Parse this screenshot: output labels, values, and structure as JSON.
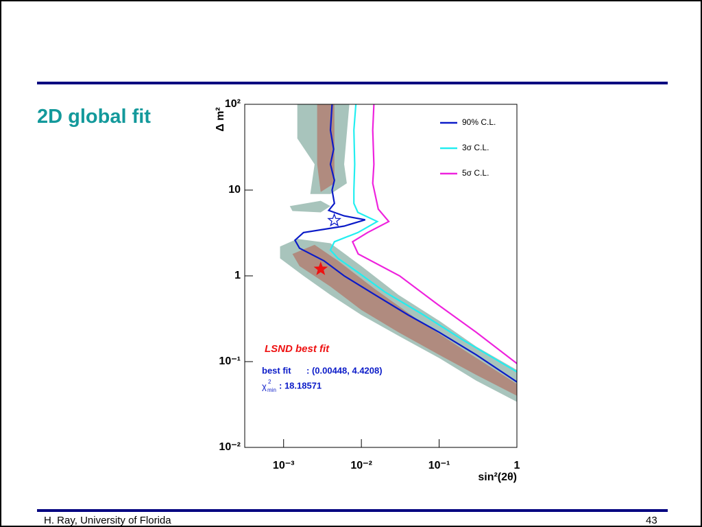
{
  "slide": {
    "title": "2D global fit",
    "footer_left": "H. Ray,  University of Florida",
    "footer_right": "43"
  },
  "chart_data": {
    "type": "line",
    "xscale": "log",
    "yscale": "log",
    "xlabel": "sin²(2θ)",
    "ylabel": "Δ m²",
    "xlim": [
      0.0003162,
      1
    ],
    "ylim": [
      0.01,
      100
    ],
    "xticks": [
      {
        "value": 0.001,
        "label": "10⁻³"
      },
      {
        "value": 0.01,
        "label": "10⁻²"
      },
      {
        "value": 0.1,
        "label": "10⁻¹"
      },
      1
    ],
    "yticks": [
      {
        "value": 0.01,
        "label": "10⁻²"
      },
      {
        "value": 0.1,
        "label": "10⁻¹"
      },
      1,
      10,
      {
        "value": 100,
        "label": "10²"
      }
    ],
    "legend": "upper right",
    "series": [
      {
        "name": "90% C.L.",
        "color": "#0b1bc8",
        "x": [
          0.0042,
          0.004,
          0.0044,
          0.004,
          0.0045,
          0.0042,
          0.0045,
          0.0038,
          0.006,
          0.0112,
          0.006,
          0.0018,
          0.0014,
          0.0016,
          0.0033,
          0.006,
          0.015,
          0.04,
          0.1,
          0.3,
          1
        ],
        "values": [
          100,
          50,
          30,
          20,
          13,
          10,
          7,
          5.8,
          5.0,
          4.5,
          3.8,
          3.2,
          2.6,
          2.1,
          1.5,
          1.0,
          0.6,
          0.35,
          0.22,
          0.12,
          0.058
        ]
      },
      {
        "name": "3σ C.L.",
        "color": "#22eef0",
        "x": [
          0.0085,
          0.008,
          0.0082,
          0.008,
          0.008,
          0.009,
          0.016,
          0.009,
          0.0045,
          0.004,
          0.005,
          0.009,
          0.02,
          0.06,
          0.2,
          1
        ],
        "values": [
          100,
          50,
          20,
          10,
          7,
          5.5,
          4.3,
          3.2,
          2.5,
          2.0,
          1.6,
          1.1,
          0.65,
          0.36,
          0.18,
          0.076
        ]
      },
      {
        "name": "5σ C.L.",
        "color": "#ee22dd",
        "x": [
          0.0145,
          0.014,
          0.0145,
          0.014,
          0.0165,
          0.0225,
          0.012,
          0.0077,
          0.0091,
          0.031,
          0.1,
          0.3,
          1
        ],
        "values": [
          100,
          50,
          20,
          12,
          6,
          4.3,
          3.2,
          2.5,
          1.8,
          1.0,
          0.45,
          0.22,
          0.095
        ]
      }
    ],
    "regions": [
      {
        "color": "#a8c4bc",
        "x": [
          0.0009,
          0.0015,
          0.004,
          0.01,
          0.03,
          0.1,
          0.3,
          1,
          1,
          0.3,
          0.1,
          0.03,
          0.01,
          0.004,
          0.0018,
          0.0009
        ],
        "y": [
          2.2,
          2.7,
          2.4,
          1.3,
          0.6,
          0.3,
          0.15,
          0.08,
          0.034,
          0.06,
          0.11,
          0.2,
          0.35,
          0.6,
          1.0,
          1.6
        ]
      },
      {
        "color": "#a8c4bc",
        "x": [
          0.0015,
          0.007,
          0.006,
          0.0065,
          0.004,
          0.0022,
          0.0025,
          0.0015
        ],
        "y": [
          100,
          100,
          20,
          12,
          9,
          9,
          20,
          40
        ]
      },
      {
        "color": "#a8c4bc",
        "x": [
          0.0012,
          0.003,
          0.004,
          0.003,
          0.0013
        ],
        "y": [
          6.5,
          7.5,
          6.5,
          5.5,
          5.7
        ]
      },
      {
        "color": "#b08b7f",
        "x": [
          0.0013,
          0.0025,
          0.005,
          0.015,
          0.05,
          0.2,
          1,
          1,
          0.3,
          0.1,
          0.03,
          0.01,
          0.004,
          0.0016
        ],
        "y": [
          1.8,
          2.3,
          1.5,
          0.7,
          0.32,
          0.14,
          0.055,
          0.04,
          0.07,
          0.12,
          0.22,
          0.4,
          0.75,
          1.3
        ]
      },
      {
        "color": "#b08b7f",
        "x": [
          0.0027,
          0.0045,
          0.0045,
          0.003,
          0.0027
        ],
        "y": [
          100,
          100,
          12,
          9.5,
          20
        ]
      }
    ],
    "markers": [
      {
        "x": 0.00448,
        "y": 4.4208,
        "color": "#0b1bc8",
        "style": "open"
      },
      {
        "x": 0.003,
        "y": 1.2,
        "color": "#ee1111",
        "style": "filled"
      }
    ],
    "annotations": {
      "lsnd": "LSND best fit",
      "best_fit_label": "best fit",
      "best_fit_value": ": (0.00448, 4.4208)",
      "chi": "χ",
      "chi_sup": "2",
      "chi_sub": "min",
      "chi_value": ": 18.18571"
    }
  }
}
